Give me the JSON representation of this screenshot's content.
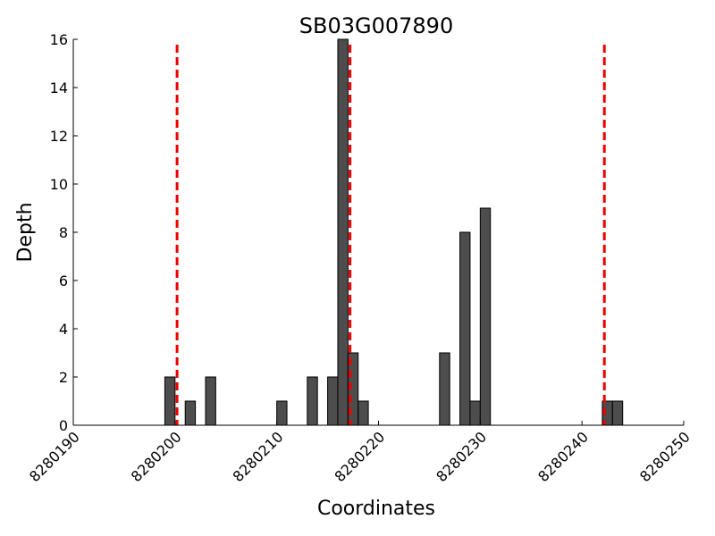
{
  "chart_data": {
    "type": "bar",
    "title": "SB03G007890",
    "xlabel": "Coordinates",
    "ylabel": "Depth",
    "xlim": [
      8280190,
      8280250
    ],
    "ylim": [
      0,
      16
    ],
    "xticks": [
      8280190,
      8280200,
      8280210,
      8280220,
      8280230,
      8280240,
      8280250
    ],
    "xtick_labels": [
      "8280190",
      "8280200",
      "8280210",
      "8280220",
      "8280230",
      "8280240",
      "8280250"
    ],
    "yticks": [
      0,
      2,
      4,
      6,
      8,
      10,
      12,
      14,
      16
    ],
    "ytick_labels": [
      "0",
      "2",
      "4",
      "6",
      "8",
      "10",
      "12",
      "14",
      "16"
    ],
    "bar_color": "#4d4d4d",
    "bar_width": 1,
    "bars": [
      {
        "x": 8280200,
        "value": 2
      },
      {
        "x": 8280202,
        "value": 1
      },
      {
        "x": 8280204,
        "value": 2
      },
      {
        "x": 8280211,
        "value": 1
      },
      {
        "x": 8280214,
        "value": 2
      },
      {
        "x": 8280216,
        "value": 2
      },
      {
        "x": 8280217,
        "value": 16
      },
      {
        "x": 8280218,
        "value": 3
      },
      {
        "x": 8280219,
        "value": 1
      },
      {
        "x": 8280227,
        "value": 3
      },
      {
        "x": 8280229,
        "value": 8
      },
      {
        "x": 8280230,
        "value": 1
      },
      {
        "x": 8280231,
        "value": 9
      },
      {
        "x": 8280243,
        "value": 1
      },
      {
        "x": 8280244,
        "value": 1
      }
    ],
    "reference_lines": {
      "color": "#ee0000",
      "style": "dashed",
      "x": [
        8280200.2,
        8280217.2,
        8280242.2
      ]
    },
    "grid": false,
    "legend": "none"
  }
}
